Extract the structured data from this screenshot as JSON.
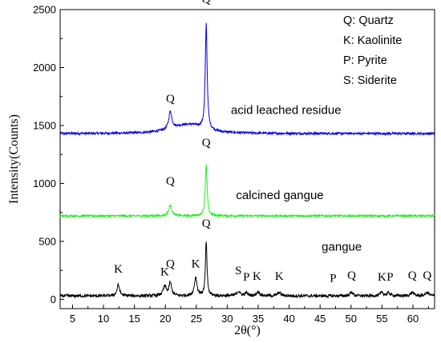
{
  "chart_data": {
    "type": "line",
    "xlabel": "2θ(°)",
    "ylabel": "Intensity(Counts)",
    "xlim": [
      3,
      63.5
    ],
    "ylim": [
      -80,
      2500
    ],
    "xticks": [
      5,
      10,
      15,
      20,
      25,
      30,
      35,
      40,
      45,
      50,
      55,
      60
    ],
    "yticks": [
      0,
      500,
      1000,
      1500,
      2000,
      2500
    ],
    "grid": false,
    "legend": {
      "placement": "top-right",
      "entries": [
        "Q: Quartz",
        "K: Kaolinite",
        "P: Pyrite",
        "S: Siderite"
      ]
    },
    "series": [
      {
        "name": "acid leached residue",
        "color": "#0000e6",
        "baseline": 1430,
        "noise": 10,
        "peaks": [
          {
            "x": 20.8,
            "height": 150,
            "width": 0.3
          },
          {
            "x": 26.6,
            "height": 910,
            "width": 0.18
          },
          {
            "x": 22.5,
            "height": 40,
            "width": 2.5
          },
          {
            "x": 24.5,
            "height": 50,
            "width": 2.5
          }
        ],
        "labels": [
          {
            "text": "Q",
            "x": 20.8,
            "y": 1700
          },
          {
            "text": "Q",
            "x": 26.6,
            "y": 2560
          }
        ]
      },
      {
        "name": "calcined gangue",
        "color": "#22ee22",
        "baseline": 720,
        "noise": 9,
        "peaks": [
          {
            "x": 20.8,
            "height": 90,
            "width": 0.3
          },
          {
            "x": 26.6,
            "height": 440,
            "width": 0.18
          }
        ],
        "labels": [
          {
            "text": "Q",
            "x": 20.8,
            "y": 990
          },
          {
            "text": "Q",
            "x": 26.6,
            "y": 1320
          }
        ]
      },
      {
        "name": "gangue",
        "color": "#000000",
        "baseline": 30,
        "noise": 13,
        "peaks": [
          {
            "x": 12.4,
            "height": 95,
            "width": 0.25
          },
          {
            "x": 19.9,
            "height": 80,
            "width": 0.3
          },
          {
            "x": 20.8,
            "height": 110,
            "width": 0.25
          },
          {
            "x": 24.9,
            "height": 160,
            "width": 0.25
          },
          {
            "x": 26.6,
            "height": 470,
            "width": 0.15
          },
          {
            "x": 31.8,
            "height": 40,
            "width": 0.3
          },
          {
            "x": 33.1,
            "height": 25,
            "width": 0.3
          },
          {
            "x": 35.0,
            "height": 35,
            "width": 0.3
          },
          {
            "x": 38.4,
            "height": 30,
            "width": 0.3
          },
          {
            "x": 50.1,
            "height": 30,
            "width": 0.3
          },
          {
            "x": 55.0,
            "height": 30,
            "width": 0.3
          },
          {
            "x": 56.1,
            "height": 25,
            "width": 0.3
          },
          {
            "x": 59.9,
            "height": 30,
            "width": 0.3
          },
          {
            "x": 62.3,
            "height": 30,
            "width": 0.3
          }
        ],
        "labels": [
          {
            "text": "K",
            "x": 12.4,
            "y": 230
          },
          {
            "text": "K",
            "x": 19.9,
            "y": 205
          },
          {
            "text": "Q",
            "x": 20.8,
            "y": 275
          },
          {
            "text": "K",
            "x": 24.9,
            "y": 275
          },
          {
            "text": "Q",
            "x": 26.6,
            "y": 625
          },
          {
            "text": "S",
            "x": 31.8,
            "y": 215
          },
          {
            "text": "P",
            "x": 33.1,
            "y": 160
          },
          {
            "text": "K",
            "x": 34.8,
            "y": 170
          },
          {
            "text": "K",
            "x": 38.4,
            "y": 170
          },
          {
            "text": "P",
            "x": 47.1,
            "y": 150
          },
          {
            "text": "Q",
            "x": 50.1,
            "y": 175
          },
          {
            "text": "K",
            "x": 55.0,
            "y": 160
          },
          {
            "text": "P",
            "x": 56.3,
            "y": 160
          },
          {
            "text": "Q",
            "x": 59.9,
            "y": 175
          },
          {
            "text": "Q",
            "x": 62.3,
            "y": 175
          }
        ]
      }
    ],
    "annotations": [
      {
        "text": "acid leached residue",
        "series": 0,
        "x": 39.5,
        "y": 1600
      },
      {
        "text": "calcined gangue",
        "series": 1,
        "x": 38.5,
        "y": 865
      },
      {
        "text": "gangue",
        "series": 2,
        "x": 48.5,
        "y": 420
      }
    ]
  }
}
